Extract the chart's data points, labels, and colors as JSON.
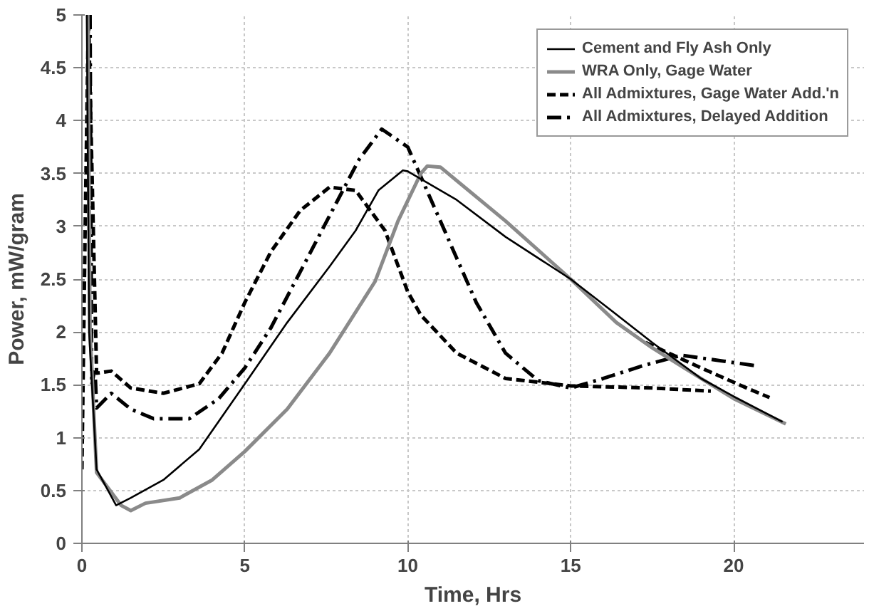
{
  "chart_data": {
    "type": "line",
    "xlabel": "Time, Hrs",
    "ylabel": "Power, mW/gram",
    "xlim": [
      0,
      24
    ],
    "ylim": [
      0,
      5
    ],
    "xticks": [
      0,
      5,
      10,
      15,
      20
    ],
    "yticks": [
      0,
      0.5,
      1,
      1.5,
      2,
      2.5,
      3,
      3.5,
      4,
      4.5,
      5
    ],
    "grid": true,
    "legend": "top right",
    "marker": "none",
    "series": [
      {
        "name": "Cement and Fly Ash Only",
        "color": "#000000",
        "line_style": "solid",
        "x": [
          0.15,
          0.22,
          0.45,
          1.05,
          1.5,
          2.5,
          3.6,
          5,
          6.3,
          7.6,
          8.4,
          9.1,
          9.85,
          10,
          11.5,
          13,
          15,
          16.3,
          17.5,
          19,
          20,
          21.5
        ],
        "values": [
          5,
          2.0,
          0.7,
          0.36,
          0.43,
          0.6,
          0.89,
          1.51,
          2.09,
          2.62,
          2.96,
          3.34,
          3.53,
          3.52,
          3.25,
          2.9,
          2.5,
          2.19,
          1.9,
          1.56,
          1.39,
          1.15
        ]
      },
      {
        "name": "WRA Only, Gage Water",
        "color": "#8a8a8a",
        "line_style": "solid",
        "x": [
          0.18,
          0.25,
          0.45,
          1.2,
          1.5,
          1.95,
          3,
          4,
          5,
          6.3,
          7.6,
          9,
          9.7,
          10.4,
          10.6,
          11,
          13,
          15,
          16.4,
          17.5,
          19,
          20,
          21.6
        ],
        "values": [
          5,
          2.0,
          0.67,
          0.36,
          0.31,
          0.38,
          0.43,
          0.6,
          0.87,
          1.27,
          1.8,
          2.48,
          3.05,
          3.5,
          3.57,
          3.56,
          3.05,
          2.5,
          2.09,
          1.85,
          1.56,
          1.37,
          1.13
        ]
      },
      {
        "name": "All Admixtures, Gage Water Add.'n",
        "color": "#000000",
        "line_style": "dashed",
        "x": [
          0,
          0.1,
          0.2,
          0.45,
          0.9,
          1.5,
          2.5,
          3.6,
          4.3,
          5,
          5.8,
          6.7,
          7.6,
          8.4,
          9.3,
          10,
          10.4,
          11.5,
          13,
          15,
          17.5,
          19.3,
          null,
          17.3,
          19,
          20.4,
          21.1
        ],
        "values": [
          0.7,
          3.0,
          5,
          1.61,
          1.63,
          1.47,
          1.42,
          1.51,
          1.8,
          2.28,
          2.76,
          3.15,
          3.37,
          3.34,
          2.96,
          2.38,
          2.16,
          1.8,
          1.56,
          1.49,
          1.47,
          1.44,
          null,
          1.9,
          1.66,
          1.47,
          1.38
        ]
      },
      {
        "name": "All Admixtures, Delayed Addition",
        "color": "#000000",
        "line_style": "dashdot",
        "x": [
          0.25,
          0.3,
          0.4,
          0.45,
          0.9,
          1.5,
          2.2,
          3.3,
          4.2,
          5,
          5.8,
          6.7,
          7.6,
          8.5,
          9.2,
          10,
          11.2,
          12.1,
          13,
          14,
          15,
          16,
          17.2,
          18.4,
          20.7
        ],
        "values": [
          5,
          1.5,
          1.66,
          1.28,
          1.42,
          1.27,
          1.18,
          1.18,
          1.37,
          1.66,
          2.04,
          2.57,
          3.1,
          3.63,
          3.92,
          3.75,
          2.91,
          2.28,
          1.8,
          1.54,
          1.47,
          1.56,
          1.68,
          1.78,
          1.68
        ]
      }
    ]
  }
}
